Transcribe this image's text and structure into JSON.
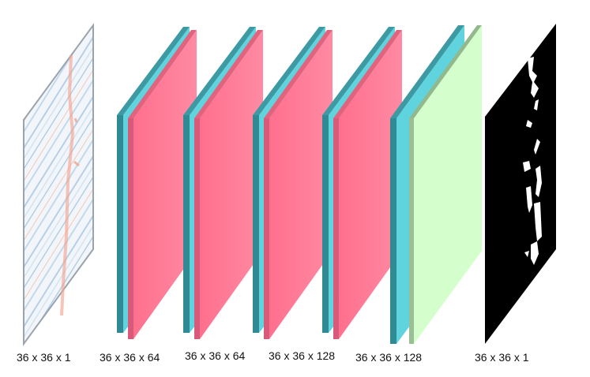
{
  "layers": [
    {
      "label": "36 x 36 x 1",
      "kind": "input-image"
    },
    {
      "label": "36 x 36 x 64",
      "kind": "conv-block"
    },
    {
      "label": "36 x 36 x 64",
      "kind": "conv-block"
    },
    {
      "label": "36 x 36 x 128",
      "kind": "conv-block"
    },
    {
      "label": "36 x 36 x 128",
      "kind": "conv-block"
    },
    {
      "label": "36 x 36 x 1",
      "kind": "output-mask"
    }
  ],
  "colors": {
    "conv_front": "#5fd3de",
    "conv_side": "#2f8a93",
    "feature_map": "#ff7c98",
    "output_layer": "#d4ffcc",
    "mask_bg": "#000000",
    "mask_fg": "#ffffff"
  }
}
